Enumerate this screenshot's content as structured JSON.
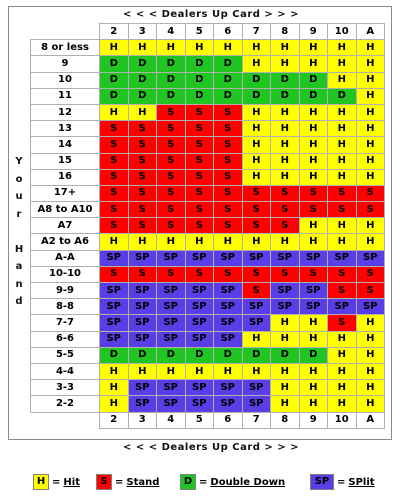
{
  "header": {
    "top_caption": "< < <  Dealers Up Card  > > >",
    "bottom_caption": "< < <  Dealers Up Card  > > >"
  },
  "side_label": [
    "Y",
    "o",
    "u",
    "r",
    "",
    "H",
    "a",
    "n",
    "d"
  ],
  "columns": [
    "2",
    "3",
    "4",
    "5",
    "6",
    "7",
    "8",
    "9",
    "10",
    "A"
  ],
  "colors": {
    "H": "#ffff00",
    "S": "#ff0000",
    "D": "#21c521",
    "SP": "#5a3de6"
  },
  "rows": [
    {
      "hand": "8 or less",
      "cells": [
        "H",
        "H",
        "H",
        "H",
        "H",
        "H",
        "H",
        "H",
        "H",
        "H"
      ]
    },
    {
      "hand": "9",
      "cells": [
        "D",
        "D",
        "D",
        "D",
        "D",
        "H",
        "H",
        "H",
        "H",
        "H"
      ]
    },
    {
      "hand": "10",
      "cells": [
        "D",
        "D",
        "D",
        "D",
        "D",
        "D",
        "D",
        "D",
        "H",
        "H"
      ]
    },
    {
      "hand": "11",
      "cells": [
        "D",
        "D",
        "D",
        "D",
        "D",
        "D",
        "D",
        "D",
        "D",
        "H"
      ]
    },
    {
      "hand": "12",
      "cells": [
        "H",
        "H",
        "S",
        "S",
        "S",
        "H",
        "H",
        "H",
        "H",
        "H"
      ]
    },
    {
      "hand": "13",
      "cells": [
        "S",
        "S",
        "S",
        "S",
        "S",
        "H",
        "H",
        "H",
        "H",
        "H"
      ]
    },
    {
      "hand": "14",
      "cells": [
        "S",
        "S",
        "S",
        "S",
        "S",
        "H",
        "H",
        "H",
        "H",
        "H"
      ]
    },
    {
      "hand": "15",
      "cells": [
        "S",
        "S",
        "S",
        "S",
        "S",
        "H",
        "H",
        "H",
        "H",
        "H"
      ]
    },
    {
      "hand": "16",
      "cells": [
        "S",
        "S",
        "S",
        "S",
        "S",
        "H",
        "H",
        "H",
        "H",
        "H"
      ]
    },
    {
      "hand": "17+",
      "cells": [
        "S",
        "S",
        "S",
        "S",
        "S",
        "S",
        "S",
        "S",
        "S",
        "S"
      ]
    },
    {
      "hand": "A8 to A10",
      "cells": [
        "S",
        "S",
        "S",
        "S",
        "S",
        "S",
        "S",
        "S",
        "S",
        "S"
      ]
    },
    {
      "hand": "A7",
      "cells": [
        "S",
        "S",
        "S",
        "S",
        "S",
        "S",
        "S",
        "H",
        "H",
        "H"
      ]
    },
    {
      "hand": "A2 to A6",
      "cells": [
        "H",
        "H",
        "H",
        "H",
        "H",
        "H",
        "H",
        "H",
        "H",
        "H"
      ]
    },
    {
      "hand": "A-A",
      "cells": [
        "SP",
        "SP",
        "SP",
        "SP",
        "SP",
        "SP",
        "SP",
        "SP",
        "SP",
        "SP"
      ]
    },
    {
      "hand": "10-10",
      "cells": [
        "S",
        "S",
        "S",
        "S",
        "S",
        "S",
        "S",
        "S",
        "S",
        "S"
      ]
    },
    {
      "hand": "9-9",
      "cells": [
        "SP",
        "SP",
        "SP",
        "SP",
        "SP",
        "S",
        "SP",
        "SP",
        "S",
        "S"
      ]
    },
    {
      "hand": "8-8",
      "cells": [
        "SP",
        "SP",
        "SP",
        "SP",
        "SP",
        "SP",
        "SP",
        "SP",
        "SP",
        "SP"
      ]
    },
    {
      "hand": "7-7",
      "cells": [
        "SP",
        "SP",
        "SP",
        "SP",
        "SP",
        "SP",
        "H",
        "H",
        "S",
        "H"
      ]
    },
    {
      "hand": "6-6",
      "cells": [
        "SP",
        "SP",
        "SP",
        "SP",
        "SP",
        "H",
        "H",
        "H",
        "H",
        "H"
      ]
    },
    {
      "hand": "5-5",
      "cells": [
        "D",
        "D",
        "D",
        "D",
        "D",
        "D",
        "D",
        "D",
        "H",
        "H"
      ]
    },
    {
      "hand": "4-4",
      "cells": [
        "H",
        "H",
        "H",
        "H",
        "H",
        "H",
        "H",
        "H",
        "H",
        "H"
      ]
    },
    {
      "hand": "3-3",
      "cells": [
        "H",
        "SP",
        "SP",
        "SP",
        "SP",
        "SP",
        "H",
        "H",
        "H",
        "H"
      ]
    },
    {
      "hand": "2-2",
      "cells": [
        "H",
        "SP",
        "SP",
        "SP",
        "SP",
        "SP",
        "H",
        "H",
        "H",
        "H"
      ]
    }
  ],
  "legend": [
    {
      "code": "H",
      "eq": "=",
      "label": "Hit"
    },
    {
      "code": "S",
      "eq": "=",
      "label": "Stand"
    },
    {
      "code": "D",
      "eq": "=",
      "label": "Double Down"
    },
    {
      "code": "SP",
      "eq": "=",
      "label": "SPlit"
    }
  ]
}
